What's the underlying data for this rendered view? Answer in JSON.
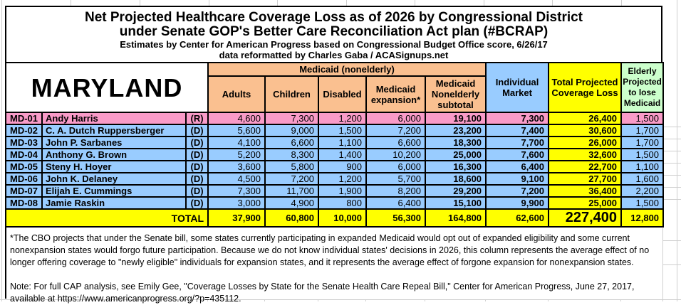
{
  "title": {
    "line1": "Net Projected Healthcare Coverage Loss as of 2026 by Congressional District",
    "line2": "under Senate GOP's Better Care Reconciliation Act plan (#BCRAP)",
    "subtitle1": "Estimates by Center for American Progress based on Congressional Budget Office score, 6/26/17",
    "subtitle2": "data reformatted by Charles Gaba / ACASignups.net"
  },
  "table": {
    "state": "MARYLAND",
    "group_header": "Medicaid (nonelderly)",
    "col_headers": {
      "adults": "Adults",
      "children": "Children",
      "disabled": "Disabled",
      "expansion": "Medicaid expansion*",
      "subtotal": "Medicaid Nonelderly subtotal",
      "individual": "Individual Market",
      "total": "Total Projected Coverage Loss",
      "elderly": "Elderly Projected to lose Medicaid"
    },
    "rows": [
      {
        "district": "MD-01",
        "name": "Andy Harris",
        "party": "(R)",
        "adults": "4,600",
        "children": "7,300",
        "disabled": "1,200",
        "expansion": "6,000",
        "subtotal": "19,100",
        "individual": "7,300",
        "total": "26,400",
        "elderly": "1,500"
      },
      {
        "district": "MD-02",
        "name": "C. A. Dutch Ruppersberger",
        "party": "(D)",
        "adults": "5,600",
        "children": "9,000",
        "disabled": "1,500",
        "expansion": "7,200",
        "subtotal": "23,200",
        "individual": "7,400",
        "total": "30,600",
        "elderly": "1,700"
      },
      {
        "district": "MD-03",
        "name": "John P. Sarbanes",
        "party": "(D)",
        "adults": "4,100",
        "children": "6,600",
        "disabled": "1,100",
        "expansion": "6,600",
        "subtotal": "18,300",
        "individual": "7,700",
        "total": "26,000",
        "elderly": "1,700"
      },
      {
        "district": "MD-04",
        "name": "Anthony G. Brown",
        "party": "(D)",
        "adults": "5,200",
        "children": "8,300",
        "disabled": "1,400",
        "expansion": "10,200",
        "subtotal": "25,000",
        "individual": "7,600",
        "total": "32,600",
        "elderly": "1,500"
      },
      {
        "district": "MD-05",
        "name": "Steny H. Hoyer",
        "party": "(D)",
        "adults": "3,600",
        "children": "5,800",
        "disabled": "900",
        "expansion": "6,000",
        "subtotal": "16,300",
        "individual": "6,400",
        "total": "22,700",
        "elderly": "1,100"
      },
      {
        "district": "MD-06",
        "name": "John K. Delaney",
        "party": "(D)",
        "adults": "4,500",
        "children": "7,200",
        "disabled": "1,200",
        "expansion": "5,700",
        "subtotal": "18,600",
        "individual": "9,100",
        "total": "27,700",
        "elderly": "1,600"
      },
      {
        "district": "MD-07",
        "name": "Elijah E. Cummings",
        "party": "(D)",
        "adults": "7,300",
        "children": "11,700",
        "disabled": "1,900",
        "expansion": "8,200",
        "subtotal": "29,200",
        "individual": "7,200",
        "total": "36,400",
        "elderly": "2,200"
      },
      {
        "district": "MD-08",
        "name": "Jamie Raskin",
        "party": "(D)",
        "adults": "3,000",
        "children": "4,900",
        "disabled": "800",
        "expansion": "6,400",
        "subtotal": "15,100",
        "individual": "9,900",
        "total": "25,000",
        "elderly": "1,500"
      }
    ],
    "total_row": {
      "label": "TOTAL",
      "adults": "37,900",
      "children": "60,800",
      "disabled": "10,000",
      "expansion": "56,300",
      "subtotal": "164,800",
      "individual": "62,600",
      "total": "227,400",
      "elderly": "12,800"
    }
  },
  "footnote": "*The CBO projects that under the Senate bill, some states currently participating in expanded Medicaid would opt out of expanded eligibility and some current nonexpansion states would forgo future participation. Because we do not know individual states' decisions in 2026, this column represents the average effect of no longer offering coverage to \"newly eligible\" individuals for expansion states, and it represents the average effect of forgone expansion for nonexpansion states.",
  "note": "Note: For full CAP analysis, see Emily Gee, \"Coverage Losses by State for the Senate Health Care Repeal Bill,\" Center for American Progress, June 27, 2017, available at https://www.americanprogress.org/?p=435112.",
  "colors": {
    "republican_row": "#F99BC8",
    "democrat_row": "#99CCFF",
    "medicaid_header": "#FAC090",
    "individual_header": "#99CCFF",
    "total_column": "#FFFF00",
    "elderly_header": "#CCFFCC"
  }
}
